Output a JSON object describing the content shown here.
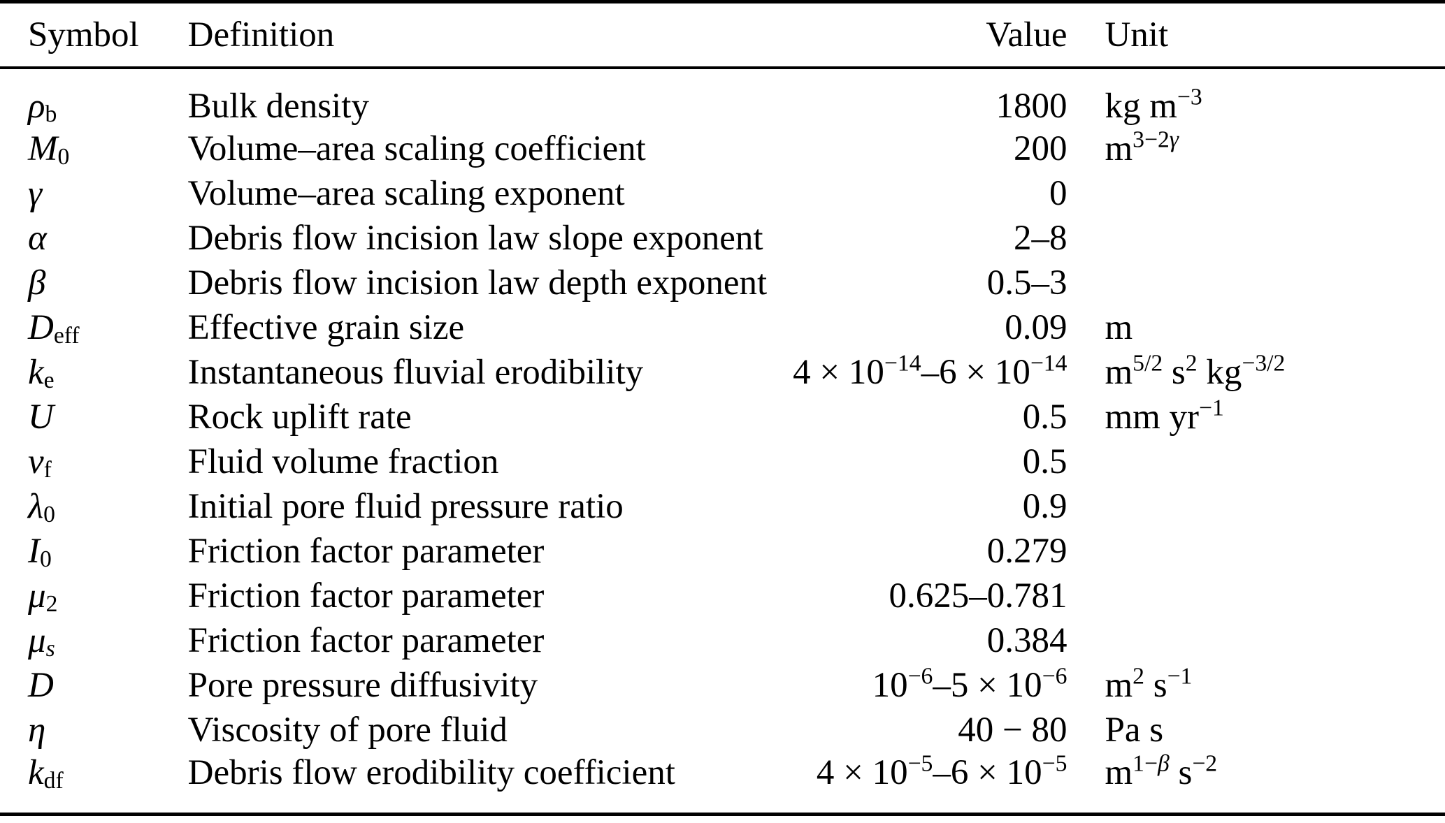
{
  "colors": {
    "background": "#ffffff",
    "text": "#000000",
    "rule": "#000000"
  },
  "table": {
    "columns": [
      "Symbol",
      "Definition",
      "Value",
      "Unit"
    ],
    "rows": [
      {
        "symbol": "~ρ~_{b}",
        "definition": "Bulk density",
        "value": "1800",
        "unit": "kg m^{−3}"
      },
      {
        "symbol": "~M~_{0}",
        "definition": "Volume–area scaling coefficient",
        "value": "200",
        "unit": "m^{3−2~γ~}"
      },
      {
        "symbol": "~γ~",
        "definition": "Volume–area scaling exponent",
        "value": "0",
        "unit": ""
      },
      {
        "symbol": "~α~",
        "definition": "Debris flow incision law slope exponent",
        "value": "2–8",
        "unit": ""
      },
      {
        "symbol": "~β~",
        "definition": "Debris flow incision law depth exponent",
        "value": "0.5–3",
        "unit": ""
      },
      {
        "symbol": "~D~_{eff}",
        "definition": "Effective grain size",
        "value": "0.09",
        "unit": "m"
      },
      {
        "symbol": "~k~_{e}",
        "definition": "Instantaneous fluvial erodibility",
        "value": "4 × 10^{−14}–6 × 10^{−14}",
        "unit": "m^{5/2} s^{2} kg^{−3/2}"
      },
      {
        "symbol": "~U~",
        "definition": "Rock uplift rate",
        "value": "0.5",
        "unit": "mm yr^{−1}"
      },
      {
        "symbol": "~v~_{f}",
        "definition": "Fluid volume fraction",
        "value": "0.5",
        "unit": ""
      },
      {
        "symbol": "~λ~_{0}",
        "definition": "Initial pore fluid pressure ratio",
        "value": "0.9",
        "unit": ""
      },
      {
        "symbol": "~I~_{0}",
        "definition": "Friction factor parameter",
        "value": "0.279",
        "unit": ""
      },
      {
        "symbol": "~μ~_{2}",
        "definition": "Friction factor parameter",
        "value": "0.625–0.781",
        "unit": ""
      },
      {
        "symbol": "~μ~_{~s~}",
        "definition": "Friction factor parameter",
        "value": "0.384",
        "unit": ""
      },
      {
        "symbol": "~D~",
        "definition": "Pore pressure diffusivity",
        "value": "10^{−6}–5 × 10^{−6}",
        "unit": "m^{2} s^{−1}"
      },
      {
        "symbol": "~η~",
        "definition": "Viscosity of pore fluid",
        "value": "40 − 80",
        "unit": "Pa s"
      },
      {
        "symbol": "~k~_{df}",
        "definition": "Debris flow erodibility coefficient",
        "value": "4 × 10^{−5}–6 × 10^{−5}",
        "unit": "m^{1−~β~} s^{−2}"
      }
    ]
  }
}
